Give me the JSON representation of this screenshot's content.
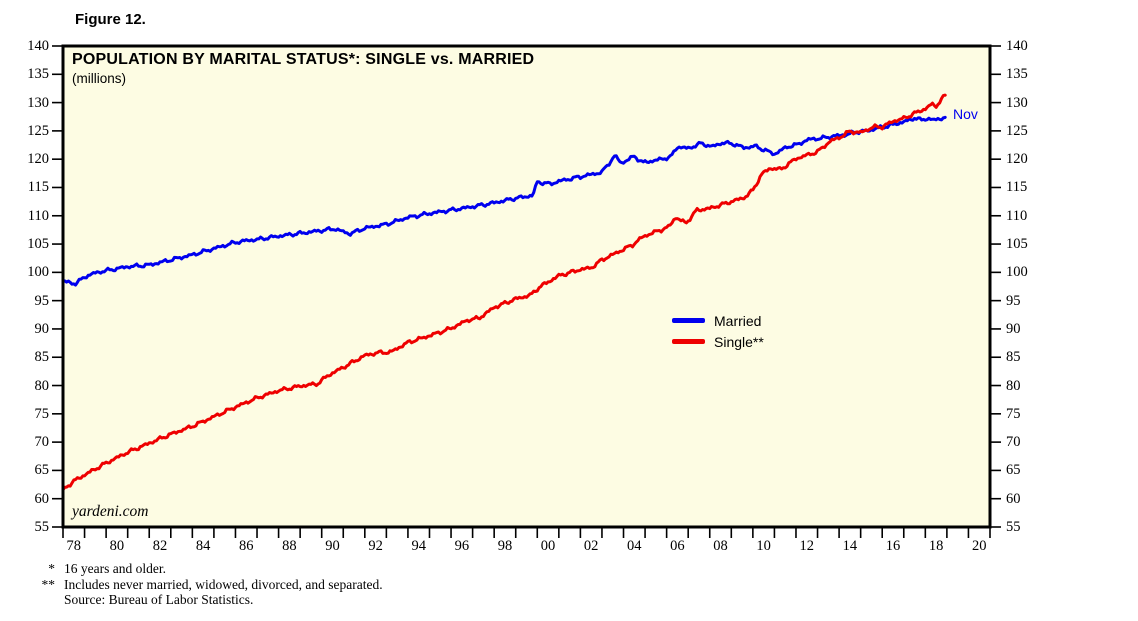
{
  "figure_label": "Figure 12.",
  "chart_data": {
    "type": "line",
    "title": "POPULATION BY MARITAL STATUS*: SINGLE vs. MARRIED",
    "subtitle": "(millions)",
    "watermark": "yardeni.com",
    "end_label": "Nov",
    "xlim": [
      1978,
      2021
    ],
    "ylim": [
      55,
      140
    ],
    "y_tick_step": 5,
    "y_ticks": [
      140,
      135,
      130,
      125,
      120,
      115,
      110,
      105,
      100,
      95,
      90,
      85,
      80,
      75,
      70,
      65,
      60,
      55
    ],
    "x_tick_labels": [
      "78",
      "80",
      "82",
      "84",
      "86",
      "88",
      "90",
      "92",
      "94",
      "96",
      "98",
      "00",
      "02",
      "04",
      "06",
      "08",
      "10",
      "12",
      "14",
      "16",
      "18",
      "20"
    ],
    "grid": false,
    "legend_position": "center-right",
    "plot_background_color": "#FDFCE3",
    "frame_color": "#000000",
    "series": [
      {
        "name": "Married",
        "color": "#0000EE",
        "points": [
          [
            1978.0,
            98.4
          ],
          [
            1978.6,
            98.0
          ],
          [
            1979.0,
            99.2
          ],
          [
            1979.5,
            99.9
          ],
          [
            1980.0,
            100.3
          ],
          [
            1981.0,
            101.0
          ],
          [
            1982.0,
            101.3
          ],
          [
            1983.0,
            102.2
          ],
          [
            1984.0,
            103.1
          ],
          [
            1985.0,
            104.2
          ],
          [
            1986.0,
            105.3
          ],
          [
            1986.5,
            105.6
          ],
          [
            1987.0,
            105.8
          ],
          [
            1988.0,
            106.4
          ],
          [
            1989.0,
            106.9
          ],
          [
            1990.0,
            107.4
          ],
          [
            1990.6,
            107.7
          ],
          [
            1991.3,
            106.8
          ],
          [
            1992.0,
            107.8
          ],
          [
            1993.0,
            108.5
          ],
          [
            1994.0,
            109.7
          ],
          [
            1995.0,
            110.4
          ],
          [
            1996.0,
            111.0
          ],
          [
            1997.0,
            111.6
          ],
          [
            1998.0,
            112.3
          ],
          [
            1999.0,
            113.1
          ],
          [
            1999.8,
            113.6
          ],
          [
            2000.0,
            116.0
          ],
          [
            2000.6,
            115.6
          ],
          [
            2001.0,
            116.1
          ],
          [
            2002.0,
            116.9
          ],
          [
            2003.0,
            117.7
          ],
          [
            2003.6,
            120.6
          ],
          [
            2003.9,
            119.3
          ],
          [
            2004.5,
            120.5
          ],
          [
            2004.9,
            119.4
          ],
          [
            2005.5,
            119.8
          ],
          [
            2006.2,
            120.4
          ],
          [
            2006.5,
            122.2
          ],
          [
            2007.0,
            121.9
          ],
          [
            2007.6,
            122.8
          ],
          [
            2008.1,
            122.2
          ],
          [
            2008.6,
            122.9
          ],
          [
            2009.1,
            122.7
          ],
          [
            2009.6,
            122.0
          ],
          [
            2010.1,
            122.3
          ],
          [
            2011.0,
            120.9
          ],
          [
            2011.6,
            122.2
          ],
          [
            2012.0,
            122.5
          ],
          [
            2012.6,
            123.5
          ],
          [
            2013.2,
            123.7
          ],
          [
            2013.8,
            124.1
          ],
          [
            2014.3,
            124.3
          ],
          [
            2014.8,
            124.8
          ],
          [
            2015.3,
            125.0
          ],
          [
            2015.8,
            125.5
          ],
          [
            2016.3,
            125.9
          ],
          [
            2016.8,
            126.4
          ],
          [
            2017.2,
            126.8
          ],
          [
            2017.5,
            127.3
          ],
          [
            2017.8,
            126.9
          ],
          [
            2018.1,
            127.2
          ],
          [
            2018.4,
            126.9
          ],
          [
            2018.92,
            127.4
          ]
        ]
      },
      {
        "name": "Single**",
        "color": "#EE0000",
        "points": [
          [
            1978.0,
            61.6
          ],
          [
            1978.5,
            63.1
          ],
          [
            1979.0,
            64.2
          ],
          [
            1980.0,
            66.3
          ],
          [
            1981.0,
            68.2
          ],
          [
            1982.0,
            69.8
          ],
          [
            1983.0,
            71.4
          ],
          [
            1984.0,
            72.8
          ],
          [
            1985.0,
            74.5
          ],
          [
            1986.0,
            76.2
          ],
          [
            1987.0,
            77.8
          ],
          [
            1988.0,
            79.1
          ],
          [
            1989.0,
            79.9
          ],
          [
            1989.8,
            80.3
          ],
          [
            1990.3,
            81.8
          ],
          [
            1991.0,
            83.2
          ],
          [
            1992.0,
            85.3
          ],
          [
            1992.6,
            85.8
          ],
          [
            1993.2,
            85.9
          ],
          [
            1994.0,
            87.6
          ],
          [
            1995.0,
            88.8
          ],
          [
            1996.0,
            90.1
          ],
          [
            1996.8,
            91.6
          ],
          [
            1997.3,
            91.9
          ],
          [
            1998.0,
            93.8
          ],
          [
            1999.0,
            95.3
          ],
          [
            1999.7,
            96.0
          ],
          [
            2000.1,
            97.4
          ],
          [
            2001.0,
            99.4
          ],
          [
            2002.0,
            100.5
          ],
          [
            2002.5,
            100.8
          ],
          [
            2003.0,
            102.2
          ],
          [
            2003.7,
            103.5
          ],
          [
            2004.4,
            104.8
          ],
          [
            2004.9,
            106.3
          ],
          [
            2005.3,
            106.9
          ],
          [
            2006.1,
            108.0
          ],
          [
            2006.4,
            109.7
          ],
          [
            2006.9,
            108.7
          ],
          [
            2007.4,
            111.0
          ],
          [
            2008.0,
            111.3
          ],
          [
            2009.0,
            112.5
          ],
          [
            2009.6,
            113.2
          ],
          [
            2010.0,
            114.5
          ],
          [
            2010.4,
            117.3
          ],
          [
            2010.8,
            118.4
          ],
          [
            2011.3,
            118.2
          ],
          [
            2012.0,
            120.1
          ],
          [
            2013.0,
            121.3
          ],
          [
            2013.6,
            123.2
          ],
          [
            2014.0,
            123.8
          ],
          [
            2014.5,
            124.9
          ],
          [
            2015.0,
            124.7
          ],
          [
            2015.6,
            125.7
          ],
          [
            2016.0,
            125.7
          ],
          [
            2016.5,
            126.7
          ],
          [
            2017.0,
            127.2
          ],
          [
            2017.5,
            128.1
          ],
          [
            2018.0,
            128.9
          ],
          [
            2018.3,
            129.7
          ],
          [
            2018.5,
            129.4
          ],
          [
            2018.92,
            131.3
          ]
        ]
      }
    ]
  },
  "footnotes": [
    {
      "marker": "*",
      "text": "16 years and older."
    },
    {
      "marker": "**",
      "text": "Includes never married, widowed, divorced, and separated."
    },
    {
      "marker": "",
      "text": "Source: Bureau of Labor Statistics."
    }
  ]
}
